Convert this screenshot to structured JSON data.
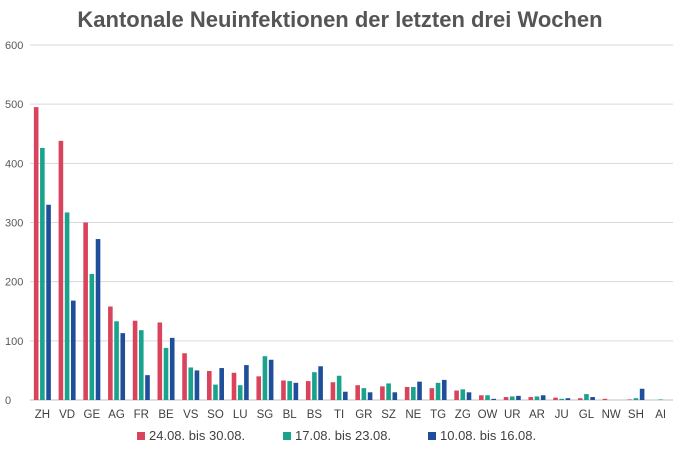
{
  "chart_data": {
    "type": "bar",
    "title": "Kantonale Neuinfektionen der letzten drei Wochen",
    "xlabel": "",
    "ylabel": "",
    "ylim": [
      0,
      600
    ],
    "yticks": [
      0,
      100,
      200,
      300,
      400,
      500,
      600
    ],
    "grid": true,
    "legend_position": "bottom",
    "categories": [
      "ZH",
      "VD",
      "GE",
      "AG",
      "FR",
      "BE",
      "VS",
      "SO",
      "LU",
      "SG",
      "BL",
      "BS",
      "TI",
      "GR",
      "SZ",
      "NE",
      "TG",
      "ZG",
      "OW",
      "UR",
      "AR",
      "JU",
      "GL",
      "NW",
      "SH",
      "AI"
    ],
    "series": [
      {
        "name": "24.08. bis 30.08.",
        "color": "#d9445c",
        "values": [
          495,
          438,
          300,
          158,
          134,
          131,
          79,
          49,
          46,
          40,
          33,
          32,
          30,
          25,
          23,
          22,
          20,
          16,
          8,
          5,
          5,
          4,
          3,
          2,
          1,
          0
        ]
      },
      {
        "name": "17.08. bis 23.08.",
        "color": "#1aa38c",
        "values": [
          426,
          317,
          213,
          133,
          118,
          88,
          55,
          26,
          25,
          74,
          32,
          47,
          41,
          20,
          28,
          22,
          29,
          18,
          8,
          6,
          6,
          2,
          10,
          0,
          3,
          1
        ]
      },
      {
        "name": "10.08. bis 16.08.",
        "color": "#1f4e9a",
        "values": [
          330,
          168,
          272,
          113,
          42,
          105,
          50,
          54,
          59,
          68,
          29,
          57,
          14,
          13,
          13,
          31,
          34,
          13,
          2,
          7,
          8,
          3,
          5,
          0,
          19,
          0
        ]
      }
    ]
  }
}
